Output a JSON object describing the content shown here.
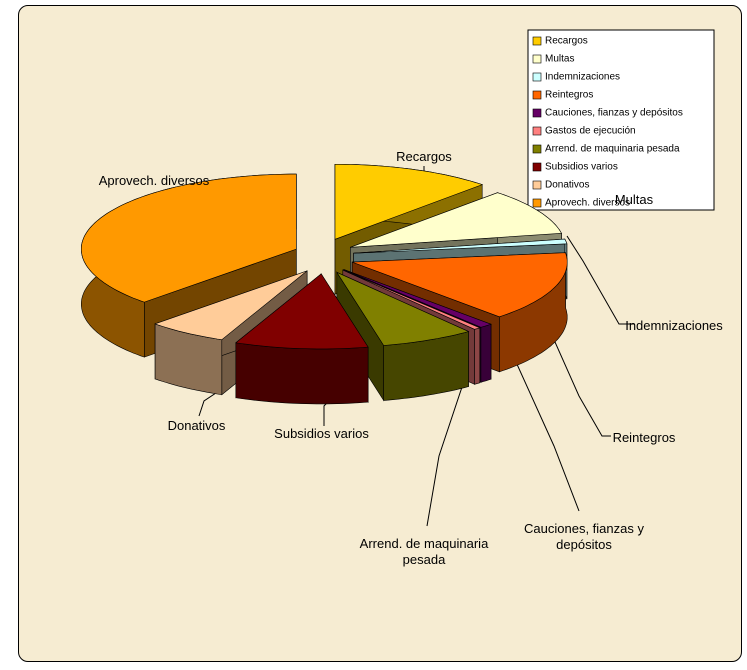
{
  "chart_data": {
    "type": "pie",
    "categories": [
      "Recargos",
      "Multas",
      "Indemnizaciones",
      "Reintegros",
      "Cauciones, fianzas y depósitos",
      "Gastos de ejecución",
      "Arrend. de maquinaria pesada",
      "Subsidios varios",
      "Donativos",
      "Aprovech. diversos"
    ],
    "values": [
      12,
      10,
      1,
      15,
      1,
      0.5,
      7,
      10,
      6,
      37.5
    ],
    "colors": [
      "#ffcc00",
      "#ffffcc",
      "#ccffff",
      "#ff6600",
      "#660066",
      "#ff8080",
      "#808000",
      "#800000",
      "#ffcc99",
      "#ff9900"
    ],
    "legend": "top-right"
  }
}
